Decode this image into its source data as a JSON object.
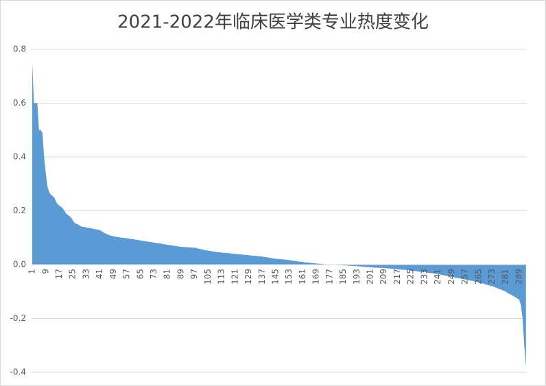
{
  "chart_data": {
    "type": "area",
    "title": "2021-2022年临床医学类专业热度变化",
    "color": "#5b9bd5",
    "grid": true,
    "ylim": [
      -0.4,
      0.8
    ],
    "yticks": [
      -0.4,
      -0.2,
      {
        "value": 0,
        "label": "0.0"
      },
      0.2,
      0.4,
      0.6,
      0.8
    ],
    "categories": [
      1,
      null,
      null,
      null,
      null,
      null,
      null,
      null,
      9,
      null,
      null,
      null,
      null,
      null,
      null,
      null,
      17,
      null,
      null,
      null,
      null,
      null,
      null,
      null,
      25,
      null,
      null,
      null,
      null,
      null,
      null,
      null,
      33,
      null,
      null,
      null,
      null,
      null,
      null,
      null,
      41,
      null,
      null,
      null,
      null,
      null,
      null,
      null,
      49,
      null,
      null,
      null,
      null,
      null,
      null,
      null,
      57,
      null,
      null,
      null,
      null,
      null,
      null,
      null,
      65,
      null,
      null,
      null,
      null,
      null,
      null,
      null,
      73,
      null,
      null,
      null,
      null,
      null,
      null,
      null,
      81,
      null,
      null,
      null,
      null,
      null,
      null,
      null,
      89,
      null,
      null,
      null,
      null,
      null,
      null,
      null,
      97,
      null,
      null,
      null,
      null,
      null,
      null,
      null,
      105,
      null,
      null,
      null,
      null,
      null,
      null,
      null,
      113,
      null,
      null,
      null,
      null,
      null,
      null,
      null,
      121,
      null,
      null,
      null,
      null,
      null,
      null,
      null,
      129,
      null,
      null,
      null,
      null,
      null,
      null,
      null,
      137,
      null,
      null,
      null,
      null,
      null,
      null,
      null,
      145,
      null,
      null,
      null,
      null,
      null,
      null,
      null,
      153,
      null,
      null,
      null,
      null,
      null,
      null,
      null,
      161,
      null,
      null,
      null,
      null,
      null,
      null,
      null,
      169,
      null,
      null,
      null,
      null,
      null,
      null,
      null,
      177,
      null,
      null,
      null,
      null,
      null,
      null,
      null,
      185,
      null,
      null,
      null,
      null,
      null,
      null,
      null,
      193,
      null,
      null,
      null,
      null,
      null,
      null,
      null,
      201,
      null,
      null,
      null,
      null,
      null,
      null,
      null,
      209,
      null,
      null,
      null,
      null,
      null,
      null,
      null,
      217,
      null,
      null,
      null,
      null,
      null,
      null,
      null,
      225,
      null,
      null,
      null,
      null,
      null,
      null,
      null,
      233,
      null,
      null,
      null,
      null,
      null,
      null,
      null,
      241,
      null,
      null,
      null,
      null,
      null,
      null,
      null,
      249,
      null,
      null,
      null,
      null,
      null,
      null,
      null,
      257,
      null,
      null,
      null,
      null,
      null,
      null,
      null,
      265,
      null,
      null,
      null,
      null,
      null,
      null,
      null,
      273,
      null,
      null,
      null,
      null,
      null,
      null,
      null,
      281,
      null,
      null,
      null,
      null,
      null,
      null,
      null,
      289,
      null,
      null,
      null,
      null
    ],
    "values": [
      0.75,
      0.6,
      0.6,
      0.6,
      0.5,
      0.5,
      0.49,
      0.4,
      0.34,
      0.29,
      0.27,
      0.26,
      0.255,
      0.25,
      0.235,
      0.225,
      0.22,
      0.215,
      0.21,
      0.2,
      0.19,
      0.185,
      0.18,
      0.175,
      0.165,
      0.155,
      0.152,
      0.15,
      0.145,
      0.142,
      0.14,
      0.14,
      0.138,
      0.137,
      0.136,
      0.135,
      0.133,
      0.132,
      0.131,
      0.13,
      0.128,
      0.125,
      0.12,
      0.117,
      0.114,
      0.111,
      0.109,
      0.107,
      0.105,
      0.104,
      0.103,
      0.102,
      0.101,
      0.1,
      0.099,
      0.099,
      0.098,
      0.097,
      0.096,
      0.095,
      0.094,
      0.093,
      0.092,
      0.091,
      0.09,
      0.089,
      0.088,
      0.087,
      0.086,
      0.085,
      0.084,
      0.083,
      0.082,
      0.081,
      0.08,
      0.079,
      0.078,
      0.077,
      0.076,
      0.075,
      0.074,
      0.073,
      0.072,
      0.071,
      0.07,
      0.069,
      0.068,
      0.067,
      0.066,
      0.066,
      0.065,
      0.065,
      0.065,
      0.064,
      0.064,
      0.063,
      0.063,
      0.062,
      0.06,
      0.059,
      0.057,
      0.056,
      0.054,
      0.053,
      0.052,
      0.051,
      0.05,
      0.049,
      0.048,
      0.047,
      0.046,
      0.046,
      0.045,
      0.044,
      0.044,
      0.043,
      0.043,
      0.042,
      0.041,
      0.041,
      0.04,
      0.039,
      0.039,
      0.038,
      0.038,
      0.037,
      0.036,
      0.036,
      0.035,
      0.034,
      0.034,
      0.033,
      0.033,
      0.032,
      0.031,
      0.031,
      0.03,
      0.029,
      0.028,
      0.027,
      0.026,
      0.025,
      0.024,
      0.023,
      0.022,
      0.021,
      0.021,
      0.02,
      0.02,
      0.019,
      0.018,
      0.018,
      0.017,
      0.016,
      0.015,
      0.014,
      0.013,
      0.012,
      0.011,
      0.011,
      0.01,
      0.009,
      0.008,
      0.008,
      0.007,
      0.006,
      0.005,
      0.005,
      0.004,
      0.004,
      0.003,
      0.003,
      0.002,
      0.002,
      0.001,
      0.001,
      0,
      0,
      -0.001,
      -0.001,
      -0.001,
      -0.002,
      -0.002,
      -0.002,
      -0.003,
      -0.003,
      -0.003,
      -0.004,
      -0.004,
      -0.005,
      -0.005,
      -0.005,
      -0.006,
      -0.006,
      -0.007,
      -0.007,
      -0.008,
      -0.008,
      -0.009,
      -0.009,
      -0.01,
      -0.01,
      -0.011,
      -0.011,
      -0.011,
      -0.012,
      -0.012,
      -0.012,
      -0.013,
      -0.013,
      -0.014,
      -0.014,
      -0.015,
      -0.015,
      -0.016,
      -0.016,
      -0.017,
      -0.018,
      -0.018,
      -0.019,
      -0.019,
      -0.02,
      -0.02,
      -0.021,
      -0.022,
      -0.023,
      -0.023,
      -0.024,
      -0.025,
      -0.026,
      -0.026,
      -0.027,
      -0.028,
      -0.029,
      -0.03,
      -0.031,
      -0.032,
      -0.032,
      -0.033,
      -0.034,
      -0.035,
      -0.036,
      -0.038,
      -0.039,
      -0.04,
      -0.041,
      -0.043,
      -0.044,
      -0.045,
      -0.046,
      -0.048,
      -0.049,
      -0.05,
      -0.051,
      -0.053,
      -0.054,
      -0.055,
      -0.056,
      -0.058,
      -0.059,
      -0.06,
      -0.061,
      -0.063,
      -0.064,
      -0.065,
      -0.067,
      -0.069,
      -0.071,
      -0.073,
      -0.075,
      -0.077,
      -0.079,
      -0.08,
      -0.082,
      -0.085,
      -0.087,
      -0.09,
      -0.092,
      -0.095,
      -0.097,
      -0.1,
      -0.105,
      -0.108,
      -0.111,
      -0.115,
      -0.118,
      -0.122,
      -0.126,
      -0.13,
      -0.15,
      -0.2,
      -0.3,
      -0.38
    ]
  }
}
